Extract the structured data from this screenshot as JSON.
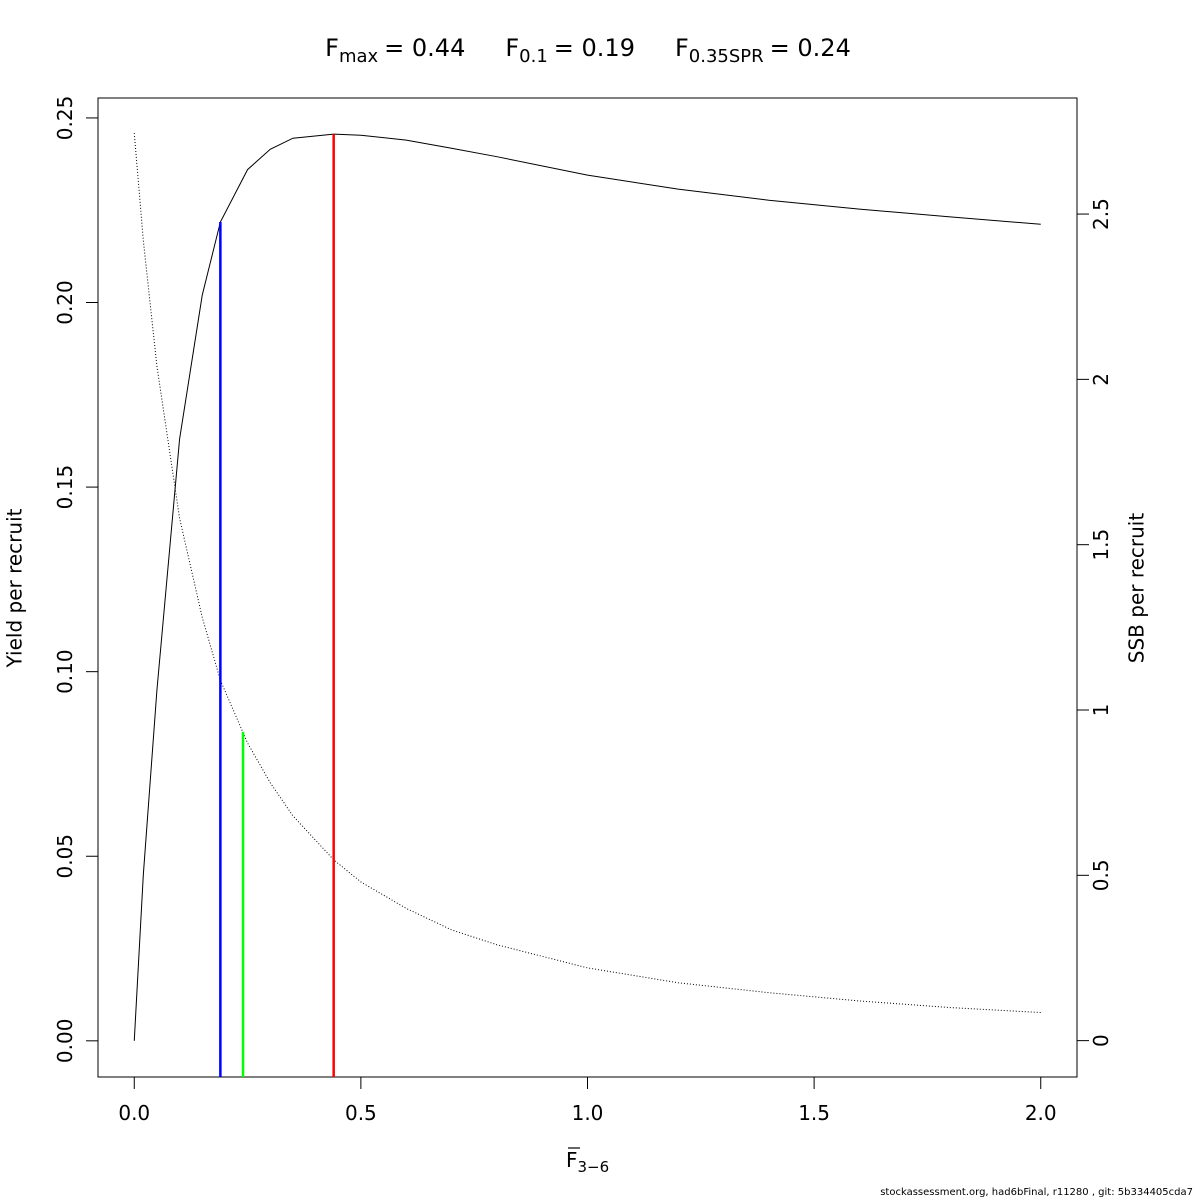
{
  "chart_data": {
    "type": "line",
    "reference_lines": [
      {
        "symbol": "F",
        "sub": "max",
        "eq": "= 0.44",
        "value": 0.44,
        "height": 0.2456,
        "axis": "y",
        "color": "#ff0000"
      },
      {
        "symbol": "F",
        "sub": "0.1",
        "eq": "= 0.19",
        "value": 0.19,
        "height": 0.2218,
        "axis": "y",
        "color": "#0000ff"
      },
      {
        "symbol": "F",
        "sub": "0.35SPR",
        "eq": "= 0.24",
        "value": 0.24,
        "height": 0.934,
        "axis": "y2",
        "color": "#00ff00"
      }
    ],
    "x": [
      0,
      0.02,
      0.05,
      0.1,
      0.15,
      0.19,
      0.25,
      0.3,
      0.35,
      0.44,
      0.5,
      0.6,
      0.7,
      0.8,
      1.0,
      1.2,
      1.4,
      1.6,
      1.8,
      2.0
    ],
    "series": [
      {
        "color": "#000000",
        "linestyle": "solid",
        "axis": "y",
        "values": [
          0,
          0.045,
          0.095,
          0.163,
          0.202,
          0.2218,
          0.236,
          0.2415,
          0.2445,
          0.2456,
          0.2453,
          0.244,
          0.2418,
          0.2395,
          0.2345,
          0.2307,
          0.2277,
          0.2253,
          0.2232,
          0.2212
        ]
      },
      {
        "color": "#000000",
        "linestyle": "dotted",
        "axis": "y2",
        "values": [
          2.745,
          2.42,
          2.04,
          1.58,
          1.28,
          1.09,
          0.9,
          0.78,
          0.68,
          0.547,
          0.48,
          0.4,
          0.335,
          0.29,
          0.22,
          0.175,
          0.145,
          0.12,
          0.1,
          0.085
        ]
      }
    ],
    "xlabel": {
      "symbol": "F",
      "sub": "3−6"
    },
    "ylabel": "Yield per recruit",
    "y2label": "SSB per recruit",
    "xlim": [
      -0.08,
      2.08
    ],
    "ylim": [
      -0.0098,
      0.2554
    ],
    "y2lim": [
      -0.11,
      2.851
    ],
    "xticks": [
      {
        "value": 0,
        "label": "0.0"
      },
      0.5,
      {
        "value": 1,
        "label": "1.0"
      },
      1.5,
      {
        "value": 2,
        "label": "2.0"
      }
    ],
    "yticks": [
      {
        "value": 0,
        "label": "0.00"
      },
      0.05,
      {
        "value": 0.1,
        "label": "0.10"
      },
      0.15,
      {
        "value": 0.2,
        "label": "0.20"
      },
      0.25
    ],
    "y2ticks": [
      0,
      0.5,
      1,
      1.5,
      2,
      2.5
    ],
    "footer": "stockassessment.org, had6bFinal, r11280 , git: 5b334405cda7"
  }
}
